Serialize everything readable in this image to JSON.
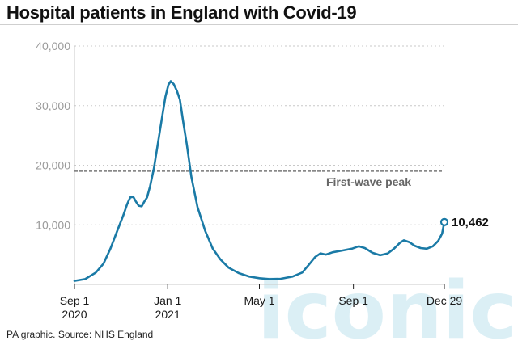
{
  "title": "Hospital patients in England with Covid-19",
  "footer": "PA graphic. Source: NHS England",
  "watermark": "iconic",
  "colors": {
    "line": "#1a7aa6",
    "grid": "#c8c8c8",
    "reference": "#777777"
  },
  "chart_data": {
    "type": "line",
    "title": "Hospital patients in England with Covid-19",
    "xlabel": "",
    "ylabel": "",
    "ylim": [
      0,
      40000
    ],
    "y_ticks": [
      {
        "value": 10000,
        "label": "10,000"
      },
      {
        "value": 20000,
        "label": "20,000"
      },
      {
        "value": 30000,
        "label": "30,000"
      },
      {
        "value": 40000,
        "label": "40,000"
      }
    ],
    "x_range": [
      "2020-09-01",
      "2021-12-29"
    ],
    "x_ticks": [
      {
        "date": "2020-09-01",
        "label": "Sep 1",
        "sub": "2020"
      },
      {
        "date": "2021-01-01",
        "label": "Jan 1",
        "sub": "2021"
      },
      {
        "date": "2021-05-01",
        "label": "May 1",
        "sub": ""
      },
      {
        "date": "2021-09-01",
        "label": "Sep 1",
        "sub": ""
      },
      {
        "date": "2021-12-29",
        "label": "Dec 29",
        "sub": ""
      }
    ],
    "grid": "horizontal",
    "reference_line": {
      "value": 19000,
      "label": "First-wave peak"
    },
    "end_label": "10,462",
    "series": [
      {
        "name": "",
        "points": [
          [
            "2020-09-01",
            600
          ],
          [
            "2020-09-15",
            900
          ],
          [
            "2020-09-29",
            2000
          ],
          [
            "2020-10-09",
            3500
          ],
          [
            "2020-10-18",
            6000
          ],
          [
            "2020-10-27",
            9000
          ],
          [
            "2020-11-04",
            11600
          ],
          [
            "2020-11-09",
            13500
          ],
          [
            "2020-11-13",
            14600
          ],
          [
            "2020-11-17",
            14700
          ],
          [
            "2020-11-20",
            14000
          ],
          [
            "2020-11-24",
            13200
          ],
          [
            "2020-11-28",
            13100
          ],
          [
            "2020-12-01",
            13800
          ],
          [
            "2020-12-05",
            14600
          ],
          [
            "2020-12-09",
            16500
          ],
          [
            "2020-12-14",
            19500
          ],
          [
            "2020-12-19",
            23500
          ],
          [
            "2020-12-24",
            27500
          ],
          [
            "2020-12-29",
            31500
          ],
          [
            "2021-01-02",
            33500
          ],
          [
            "2021-01-05",
            34100
          ],
          [
            "2021-01-09",
            33600
          ],
          [
            "2021-01-13",
            32500
          ],
          [
            "2021-01-17",
            31000
          ],
          [
            "2021-01-21",
            27500
          ],
          [
            "2021-01-26",
            23500
          ],
          [
            "2021-02-01",
            18000
          ],
          [
            "2021-02-09",
            13000
          ],
          [
            "2021-02-19",
            9000
          ],
          [
            "2021-03-01",
            6000
          ],
          [
            "2021-03-11",
            4200
          ],
          [
            "2021-03-22",
            2800
          ],
          [
            "2021-04-04",
            1900
          ],
          [
            "2021-04-18",
            1300
          ],
          [
            "2021-05-01",
            1050
          ],
          [
            "2021-05-14",
            900
          ],
          [
            "2021-05-29",
            950
          ],
          [
            "2021-06-13",
            1300
          ],
          [
            "2021-06-26",
            2000
          ],
          [
            "2021-07-06",
            3500
          ],
          [
            "2021-07-13",
            4600
          ],
          [
            "2021-07-20",
            5200
          ],
          [
            "2021-07-27",
            5000
          ],
          [
            "2021-08-05",
            5400
          ],
          [
            "2021-08-18",
            5700
          ],
          [
            "2021-08-30",
            6000
          ],
          [
            "2021-09-08",
            6400
          ],
          [
            "2021-09-16",
            6100
          ],
          [
            "2021-09-26",
            5300
          ],
          [
            "2021-10-06",
            4900
          ],
          [
            "2021-10-16",
            5200
          ],
          [
            "2021-10-24",
            6000
          ],
          [
            "2021-11-01",
            7000
          ],
          [
            "2021-11-06",
            7400
          ],
          [
            "2021-11-13",
            7100
          ],
          [
            "2021-11-20",
            6500
          ],
          [
            "2021-11-28",
            6100
          ],
          [
            "2021-12-06",
            6000
          ],
          [
            "2021-12-14",
            6400
          ],
          [
            "2021-12-21",
            7300
          ],
          [
            "2021-12-26",
            8500
          ],
          [
            "2021-12-29",
            10462
          ]
        ]
      }
    ]
  }
}
